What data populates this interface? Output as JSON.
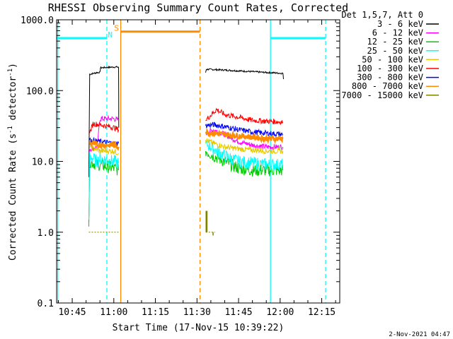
{
  "chart_data": {
    "type": "line",
    "title": "RHESSI Observing Summary Count Rates, Corrected",
    "xlabel": "Start Time (17-Nov-15 10:39:22)",
    "ylabel": "Corrected Count Rate (s",
    "ylabel_sup": "-1",
    "ylabel_tail": " detector",
    "ylabel_sup2": "-1",
    "ylabel_end": ")",
    "yscale": "log",
    "ylim": [
      0.1,
      1000
    ],
    "xlim_minutes": [
      39.37,
      141.5
    ],
    "xticks": [
      {
        "label": "10:45",
        "minute": 45
      },
      {
        "label": "11:00",
        "minute": 60
      },
      {
        "label": "11:15",
        "minute": 75
      },
      {
        "label": "11:30",
        "minute": 90
      },
      {
        "label": "11:45",
        "minute": 105
      },
      {
        "label": "12:00",
        "minute": 120
      },
      {
        "label": "12:15",
        "minute": 135
      }
    ],
    "yticks": [
      {
        "label": "0.1",
        "value": 0.1
      },
      {
        "label": "1.0",
        "value": 1
      },
      {
        "label": "10.0",
        "value": 10
      },
      {
        "label": "100.0",
        "value": 100
      },
      {
        "label": "1000.0",
        "value": 1000
      }
    ],
    "legend": {
      "header": "Det 1,5,7, Att 0",
      "placement": "outside-right"
    },
    "series": [
      {
        "name": "3 - 6 keV",
        "color": "#000000",
        "segments": [
          [
            [
              51.0,
              6
            ],
            [
              51.3,
              170
            ],
            [
              54,
              180
            ],
            [
              55,
              180
            ],
            [
              55.2,
              210
            ],
            [
              60,
              215
            ],
            [
              61.7,
              215
            ],
            [
              61.8,
              30
            ]
          ],
          [
            [
              93.1,
              180
            ],
            [
              93.4,
              200
            ],
            [
              100,
              195
            ],
            [
              110,
              185
            ],
            [
              115,
              180
            ],
            [
              118,
              178
            ],
            [
              121,
              175
            ],
            [
              121.2,
              145
            ]
          ]
        ]
      },
      {
        "name": "6 - 12 keV",
        "color": "#ff00ff",
        "segments": [
          [
            [
              51.0,
              1.4
            ],
            [
              51.3,
              15
            ],
            [
              54,
              16
            ],
            [
              55,
              40
            ],
            [
              60,
              40
            ],
            [
              61.7,
              38
            ]
          ],
          [
            [
              93.1,
              25
            ],
            [
              96,
              28
            ],
            [
              100,
              24
            ],
            [
              105,
              19
            ],
            [
              110,
              17
            ],
            [
              115,
              16
            ],
            [
              121,
              16
            ]
          ]
        ]
      },
      {
        "name": "12 - 25 keV",
        "color": "#00cc00",
        "segments": [
          [
            [
              51.0,
              1.2
            ],
            [
              51.3,
              10
            ],
            [
              54,
              9
            ],
            [
              55,
              9
            ],
            [
              60,
              8
            ],
            [
              61.7,
              7.5
            ]
          ],
          [
            [
              93.1,
              14
            ],
            [
              96,
              12
            ],
            [
              100,
              10
            ],
            [
              105,
              8
            ],
            [
              110,
              7.5
            ],
            [
              115,
              7.5
            ],
            [
              121,
              7.5
            ]
          ]
        ]
      },
      {
        "name": "25 - 50 keV",
        "color": "#00ffff",
        "segments": [
          [
            [
              51.0,
              1.5
            ],
            [
              51.3,
              12
            ],
            [
              54,
              10
            ],
            [
              55,
              11
            ],
            [
              60,
              10
            ],
            [
              61.7,
              9.5
            ]
          ],
          [
            [
              93.1,
              18
            ],
            [
              96,
              15
            ],
            [
              100,
              12
            ],
            [
              105,
              10
            ],
            [
              110,
              9.5
            ],
            [
              115,
              9
            ],
            [
              121,
              9
            ]
          ]
        ]
      },
      {
        "name": "50 - 100 keV",
        "color": "#e6c800",
        "segments": [
          [
            [
              51.3,
              16
            ],
            [
              55,
              14
            ],
            [
              60,
              14
            ],
            [
              61.7,
              13
            ]
          ],
          [
            [
              93.1,
              20
            ],
            [
              96,
              18
            ],
            [
              100,
              16
            ],
            [
              105,
              15
            ],
            [
              110,
              14.5
            ],
            [
              115,
              14
            ],
            [
              121,
              14
            ]
          ]
        ]
      },
      {
        "name": "100 - 300 keV",
        "color": "#ff0000",
        "segments": [
          [
            [
              51.3,
              25
            ],
            [
              52.5,
              34
            ],
            [
              55,
              33
            ],
            [
              60,
              30
            ],
            [
              61.7,
              28
            ]
          ],
          [
            [
              93.1,
              38
            ],
            [
              95,
              45
            ],
            [
              97,
              54
            ],
            [
              100,
              46
            ],
            [
              105,
              42
            ],
            [
              110,
              38
            ],
            [
              115,
              37
            ],
            [
              121,
              36
            ]
          ]
        ]
      },
      {
        "name": "300 - 800 keV",
        "color": "#0000ff",
        "segments": [
          [
            [
              51.3,
              20
            ],
            [
              55,
              19
            ],
            [
              60,
              18
            ],
            [
              61.7,
              18
            ]
          ],
          [
            [
              93.1,
              32
            ],
            [
              96,
              33
            ],
            [
              100,
              31
            ],
            [
              105,
              28
            ],
            [
              110,
              26
            ],
            [
              115,
              25
            ],
            [
              121,
              24
            ]
          ]
        ]
      },
      {
        "name": "800 - 7000 keV",
        "color": "#ff8c00",
        "segments": [
          [
            [
              51.3,
              18
            ],
            [
              55,
              17
            ],
            [
              60,
              17
            ],
            [
              61.7,
              16
            ]
          ],
          [
            [
              93.1,
              26
            ],
            [
              96,
              25
            ],
            [
              100,
              24
            ],
            [
              105,
              23
            ],
            [
              110,
              22
            ],
            [
              115,
              21
            ],
            [
              121,
              21
            ]
          ]
        ]
      },
      {
        "name": "7000 - 15000 keV",
        "color": "#808000",
        "segments": [
          [
            [
              51.0,
              1.0
            ],
            [
              60,
              1.0
            ],
            [
              61.7,
              1.0
            ]
          ],
          [
            [
              93.2,
              1.0
            ],
            [
              94.0,
              1.0
            ],
            [
              96.5,
              1.0
            ]
          ]
        ],
        "spikes": [
          {
            "minute": 93.3,
            "value": 2.0
          },
          {
            "minute": 93.6,
            "value": 2.0
          },
          {
            "minute": 94.3,
            "value": 1.0
          },
          {
            "minute": 95.8,
            "value": 0.9
          },
          {
            "minute": 110.8,
            "value": 1.0
          }
        ]
      }
    ],
    "flags": [
      {
        "label": "",
        "color": "#00ffff",
        "level": 550,
        "start_minute": 39.37,
        "end_minute": 57.5
      },
      {
        "label": "",
        "color": "#00ffff",
        "level": 550,
        "start_minute": 116.5,
        "end_minute": 136.4
      },
      {
        "label": "",
        "color": "#ff8c00",
        "level": 680,
        "start_minute": 62.5,
        "end_minute": 91.1
      }
    ],
    "flag_letters": [
      {
        "label": "N",
        "color": "#00ffff",
        "minute": 58.7,
        "value": 560
      },
      {
        "label": "S",
        "color": "#ff8c00",
        "minute": 61.0,
        "value": 700
      }
    ],
    "vlines": [
      {
        "minute": 39.8,
        "color": "#00ffff",
        "dashed": false
      },
      {
        "minute": 57.5,
        "color": "#00ffff",
        "dashed": true
      },
      {
        "minute": 62.5,
        "color": "#ff8c00",
        "dashed": false
      },
      {
        "minute": 91.1,
        "color": "#ff8c00",
        "dashed": true
      },
      {
        "minute": 116.5,
        "color": "#00ffff",
        "dashed": false
      },
      {
        "minute": 136.4,
        "color": "#00ffff",
        "dashed": true
      }
    ]
  },
  "footer": {
    "timestamp": "2-Nov-2021 04:47"
  }
}
